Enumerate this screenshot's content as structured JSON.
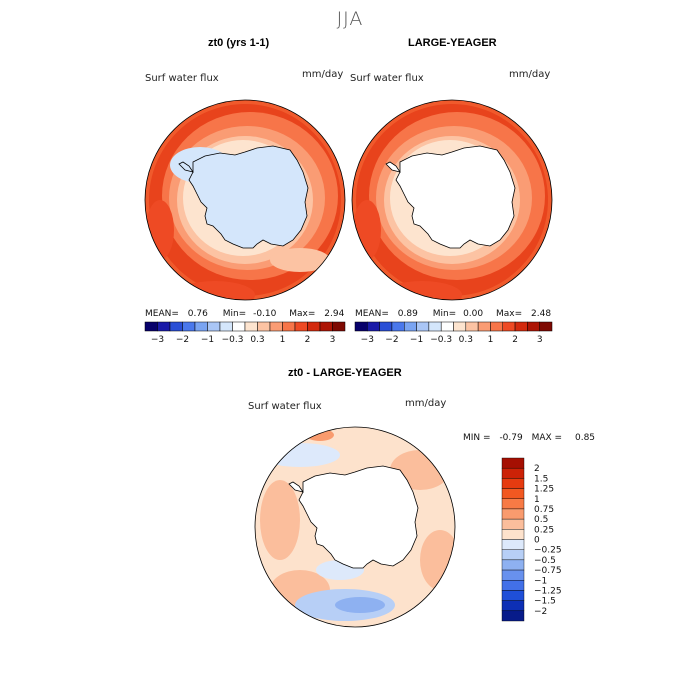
{
  "season": "JJA",
  "panels": [
    {
      "title": "zt0 (yrs 1-1)",
      "field_label": "Surf water flux",
      "units": "mm/day",
      "stats": {
        "mean": "0.76",
        "min": "-0.10",
        "max": "2.94"
      },
      "antarctic_fill": "above-zero-light"
    },
    {
      "title": "LARGE-YEAGER",
      "field_label": "Surf water flux",
      "units": "mm/day",
      "stats": {
        "mean": "0.89",
        "min": "0.00",
        "max": "2.48"
      },
      "antarctic_fill": "white"
    }
  ],
  "stat_labels": {
    "mean": "MEAN=",
    "min": "Min=",
    "max": "Max="
  },
  "top_colorbar": {
    "tick_labels": [
      "-3",
      "-2",
      "-1",
      "-0.3",
      "0.3",
      "1",
      "2",
      "3"
    ],
    "colors": [
      "#08016b",
      "#1a1aa8",
      "#2a4fd6",
      "#4a78ec",
      "#7aa4f2",
      "#aac6f6",
      "#d4e6fb",
      "#ffffff",
      "#fde4cf",
      "#fcc3a3",
      "#fa9c74",
      "#f77549",
      "#ee4a24",
      "#d32a0e",
      "#ad1505",
      "#7e0902"
    ]
  },
  "diff_panel": {
    "title": "zt0 - LARGE-YEAGER",
    "field_label": "Surf water flux",
    "units": "mm/day",
    "min_label": "MIN =",
    "min_value": "-0.79",
    "max_label": "MAX =",
    "max_value": "0.85"
  },
  "diff_colorbar": {
    "levels": [
      "2",
      "1.5",
      "1.25",
      "1",
      "0.75",
      "0.5",
      "0.25",
      "0",
      "-0.25",
      "-0.5",
      "-0.75",
      "-1",
      "-1.25",
      "-1.5",
      "-2"
    ],
    "colors": [
      "#a50f02",
      "#cc2207",
      "#e63b10",
      "#f25821",
      "#f77a45",
      "#f99b6e",
      "#fbbe9c",
      "#fde2cc",
      "#dde9fb",
      "#b7cff6",
      "#8eb1f1",
      "#6891ee",
      "#4270e8",
      "#1f4fd8",
      "#0d2fb5",
      "#071b8a"
    ]
  }
}
